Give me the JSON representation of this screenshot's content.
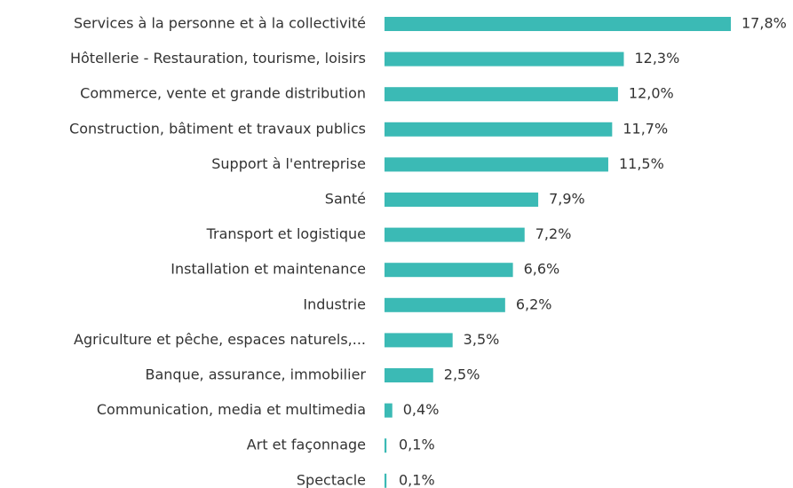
{
  "chart_data": {
    "type": "hbar",
    "categories": [
      "Services à la personne et à la collectivité",
      "Hôtellerie - Restauration, tourisme, loisirs",
      "Commerce, vente et grande distribution",
      "Construction, bâtiment et travaux publics",
      "Support à l'entreprise",
      "Santé",
      "Transport et logistique",
      "Installation et maintenance",
      "Industrie",
      "Agriculture et pêche, espaces naturels,...",
      "Banque, assurance, immobilier",
      "Communication, media et multimedia",
      "Art et façonnage",
      "Spectacle"
    ],
    "values": [
      17.8,
      12.3,
      12.0,
      11.7,
      11.5,
      7.9,
      7.2,
      6.6,
      6.2,
      3.5,
      2.5,
      0.4,
      0.1,
      0.1
    ],
    "value_labels": [
      "17,8%",
      "12,3%",
      "12,0%",
      "11,7%",
      "11,5%",
      "7,9%",
      "7,2%",
      "6,6%",
      "6,2%",
      "3,5%",
      "2,5%",
      "0,4%",
      "0,1%",
      "0,1%"
    ],
    "color": "#3bbab5"
  }
}
